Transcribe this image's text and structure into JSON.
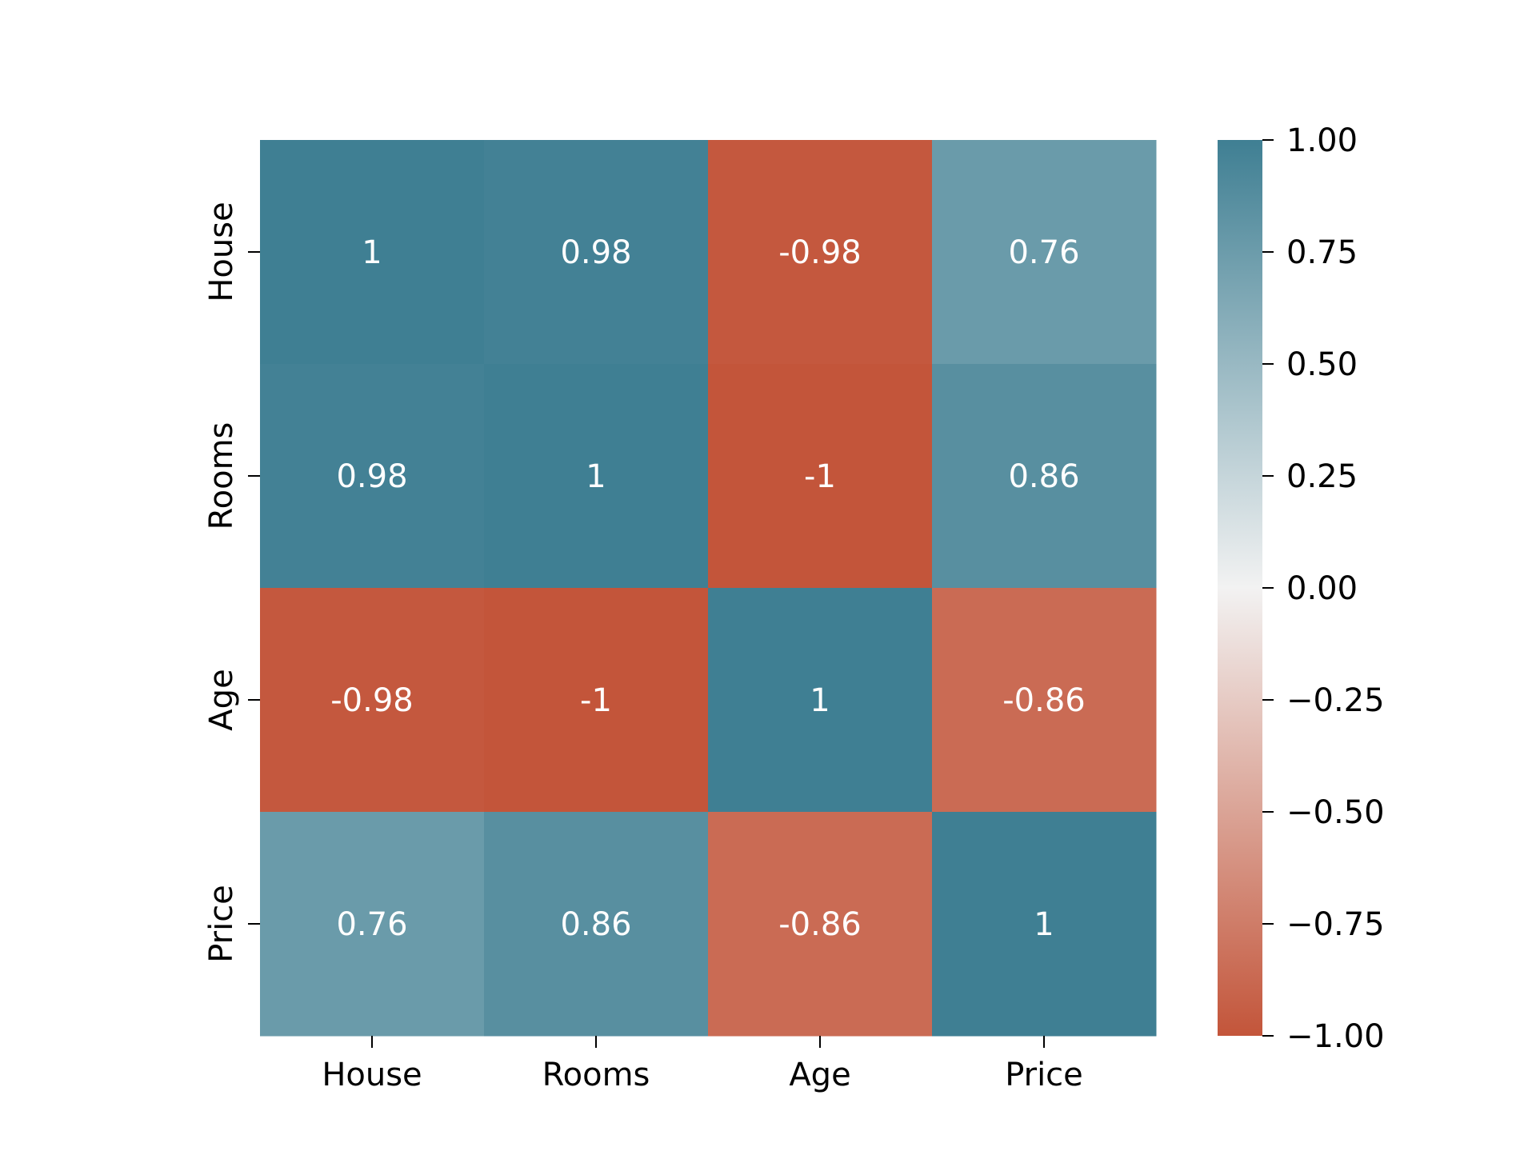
{
  "chart_data": {
    "type": "heatmap",
    "x_labels": [
      "House",
      "Rooms",
      "Age",
      "Price"
    ],
    "y_labels": [
      "House",
      "Rooms",
      "Age",
      "Price"
    ],
    "values": [
      [
        1,
        0.98,
        -0.98,
        0.76
      ],
      [
        0.98,
        1,
        -1,
        0.86
      ],
      [
        -0.98,
        -1,
        1,
        -0.86
      ],
      [
        0.76,
        0.86,
        -0.86,
        1
      ]
    ],
    "cell_labels": [
      [
        "1",
        "0.98",
        "-0.98",
        "0.76"
      ],
      [
        "0.98",
        "1",
        "-1",
        "0.86"
      ],
      [
        "-0.98",
        "-1",
        "1",
        "-0.86"
      ],
      [
        "0.76",
        "0.86",
        "-0.86",
        "1"
      ]
    ],
    "colorbar": {
      "min": -1,
      "max": 1,
      "ticks": [
        1,
        0.75,
        0.5,
        0.25,
        0,
        -0.25,
        -0.5,
        -0.75,
        -1
      ],
      "tick_labels": [
        "1.00",
        "0.75",
        "0.50",
        "0.25",
        "0.00",
        "−0.25",
        "−0.50",
        "−0.75",
        "−1.00"
      ]
    },
    "colors": {
      "negative": "#c3553a",
      "neutral": "#f2f2f2",
      "positive": "#3f7f93"
    }
  }
}
